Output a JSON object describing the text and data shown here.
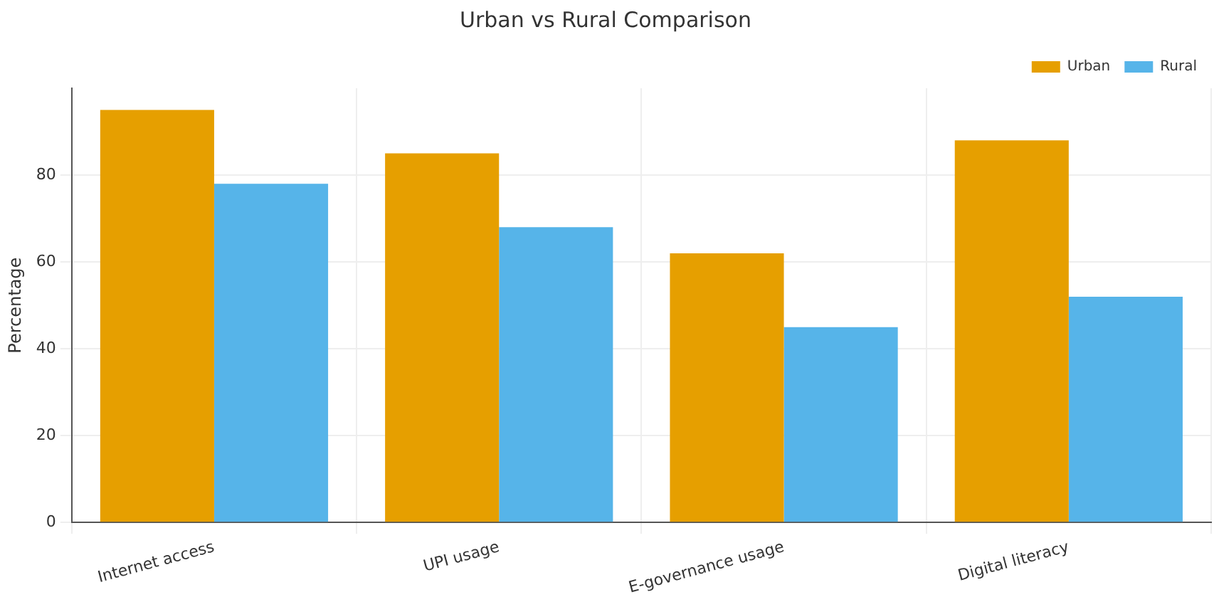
{
  "chart_data": {
    "type": "bar",
    "title": "Urban vs Rural Comparison",
    "ylabel": "Percentage",
    "categories": [
      "Internet access",
      "UPI usage",
      "E-governance usage",
      "Digital literacy"
    ],
    "series": [
      {
        "name": "Urban",
        "color": "#e69f00",
        "values": [
          95,
          85,
          62,
          88
        ]
      },
      {
        "name": "Rural",
        "color": "#56b4e9",
        "values": [
          78,
          68,
          45,
          52
        ]
      }
    ],
    "ylim": [
      0,
      100
    ],
    "yticks": [
      0,
      20,
      40,
      60,
      80
    ],
    "grid": true,
    "legend": "top right"
  }
}
